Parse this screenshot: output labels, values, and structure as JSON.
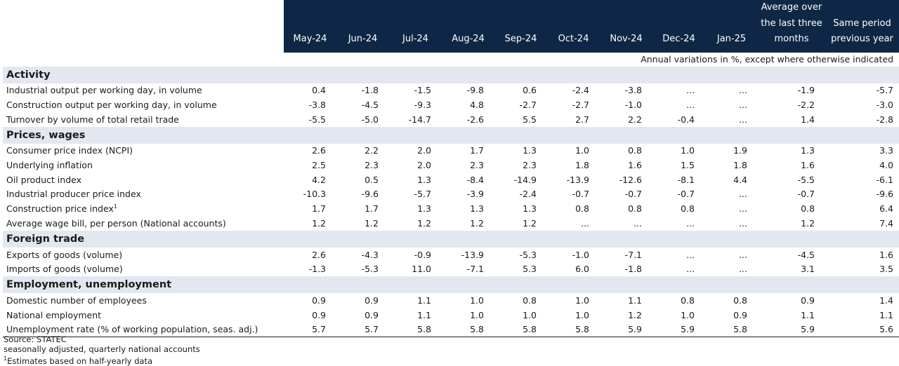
{
  "chart_data": {
    "type": "table",
    "columns": [
      "May-24",
      "Jun-24",
      "Jul-24",
      "Aug-24",
      "Sep-24",
      "Oct-24",
      "Nov-24",
      "Dec-24",
      "Jan-25"
    ],
    "extra_columns": [
      {
        "lines": [
          "Average over",
          "the last three",
          "months"
        ]
      },
      {
        "lines": [
          "Same period",
          "previous year"
        ]
      }
    ],
    "unit_note": "Annual variations in %, except where otherwise indicated",
    "sections": [
      {
        "title": "Activity",
        "rows": [
          {
            "label": "Industrial output per working day, in volume",
            "values": [
              "0.4",
              "-1.8",
              "-1.5",
              "-9.8",
              "0.6",
              "-2.4",
              "-3.8",
              "...",
              "...",
              "-1.9",
              "-5.7"
            ]
          },
          {
            "label": "Construction output per working day, in volume",
            "values": [
              "-3.8",
              "-4.5",
              "-9.3",
              "4.8",
              "-2.7",
              "-2.7",
              "-1.0",
              "...",
              "...",
              "-2.2",
              "-3.0"
            ]
          },
          {
            "label": "Turnover by volume of total retail trade",
            "values": [
              "-5.5",
              "-5.0",
              "-14.7",
              "-2.6",
              "5.5",
              "2.7",
              "2.2",
              "-0.4",
              "...",
              "1.4",
              "-2.8"
            ]
          }
        ]
      },
      {
        "title": "Prices, wages",
        "rows": [
          {
            "label": "Consumer price index (NCPI)",
            "values": [
              "2.6",
              "2.2",
              "2.0",
              "1.7",
              "1.3",
              "1.0",
              "0.8",
              "1.0",
              "1.9",
              "1.3",
              "3.3"
            ]
          },
          {
            "label": "Underlying inflation",
            "values": [
              "2.5",
              "2.3",
              "2.0",
              "2.3",
              "2.3",
              "1.8",
              "1.6",
              "1.5",
              "1.8",
              "1.6",
              "4.0"
            ]
          },
          {
            "label": "Oil product index",
            "values": [
              "4.2",
              "0.5",
              "1.3",
              "-8.4",
              "-14.9",
              "-13.9",
              "-12.6",
              "-8.1",
              "4.4",
              "-5.5",
              "-6.1"
            ]
          },
          {
            "label": "Industrial producer price index",
            "values": [
              "-10.3",
              "-9.6",
              "-5.7",
              "-3.9",
              "-2.4",
              "-0.7",
              "-0.7",
              "-0.7",
              "...",
              "-0.7",
              "-9.6"
            ]
          },
          {
            "label": "Construction price index",
            "sup": "1",
            "values": [
              "1.7",
              "1.7",
              "1.3",
              "1.3",
              "1.3",
              "0.8",
              "0.8",
              "0.8",
              "...",
              "0.8",
              "6.4"
            ]
          },
          {
            "label": "Average wage bill, per person (National accounts)",
            "values": [
              "1.2",
              "1.2",
              "1.2",
              "1.2",
              "1.2",
              "...",
              "...",
              "...",
              "...",
              "1.2",
              "7.4"
            ]
          }
        ]
      },
      {
        "title": "Foreign trade",
        "rows": [
          {
            "label": "Exports of goods (volume)",
            "values": [
              "2.6",
              "-4.3",
              "-0.9",
              "-13.9",
              "-5.3",
              "-1.0",
              "-7.1",
              "...",
              "...",
              "-4.5",
              "1.6"
            ]
          },
          {
            "label": "Imports of goods (volume)",
            "values": [
              "-1.3",
              "-5.3",
              "11.0",
              "-7.1",
              "5.3",
              "6.0",
              "-1.8",
              "...",
              "...",
              "3.1",
              "3.5"
            ]
          }
        ]
      },
      {
        "title": "Employment, unemployment",
        "rows": [
          {
            "label": "Domestic number of employees",
            "values": [
              "0.9",
              "0.9",
              "1.1",
              "1.0",
              "0.8",
              "1.0",
              "1.1",
              "0.8",
              "0.8",
              "0.9",
              "1.4"
            ]
          },
          {
            "label": "National employment",
            "values": [
              "0.9",
              "0.9",
              "1.1",
              "1.0",
              "1.0",
              "1.0",
              "1.2",
              "1.0",
              "0.9",
              "1.1",
              "1.1"
            ]
          },
          {
            "label": "Unemployment rate (% of working population, seas. adj.)",
            "values": [
              "5.7",
              "5.7",
              "5.8",
              "5.8",
              "5.8",
              "5.8",
              "5.9",
              "5.9",
              "5.8",
              "5.9",
              "5.6"
            ]
          }
        ]
      }
    ],
    "footnotes": [
      {
        "text": "Source: STATEC"
      },
      {
        "text": "seasonally adjusted, quarterly national accounts"
      },
      {
        "sup": "1",
        "text": "Estimates based on half-yearly data"
      }
    ],
    "colors": {
      "header_bg": "#0f2746",
      "section_bg": "#e2e7f0"
    }
  }
}
